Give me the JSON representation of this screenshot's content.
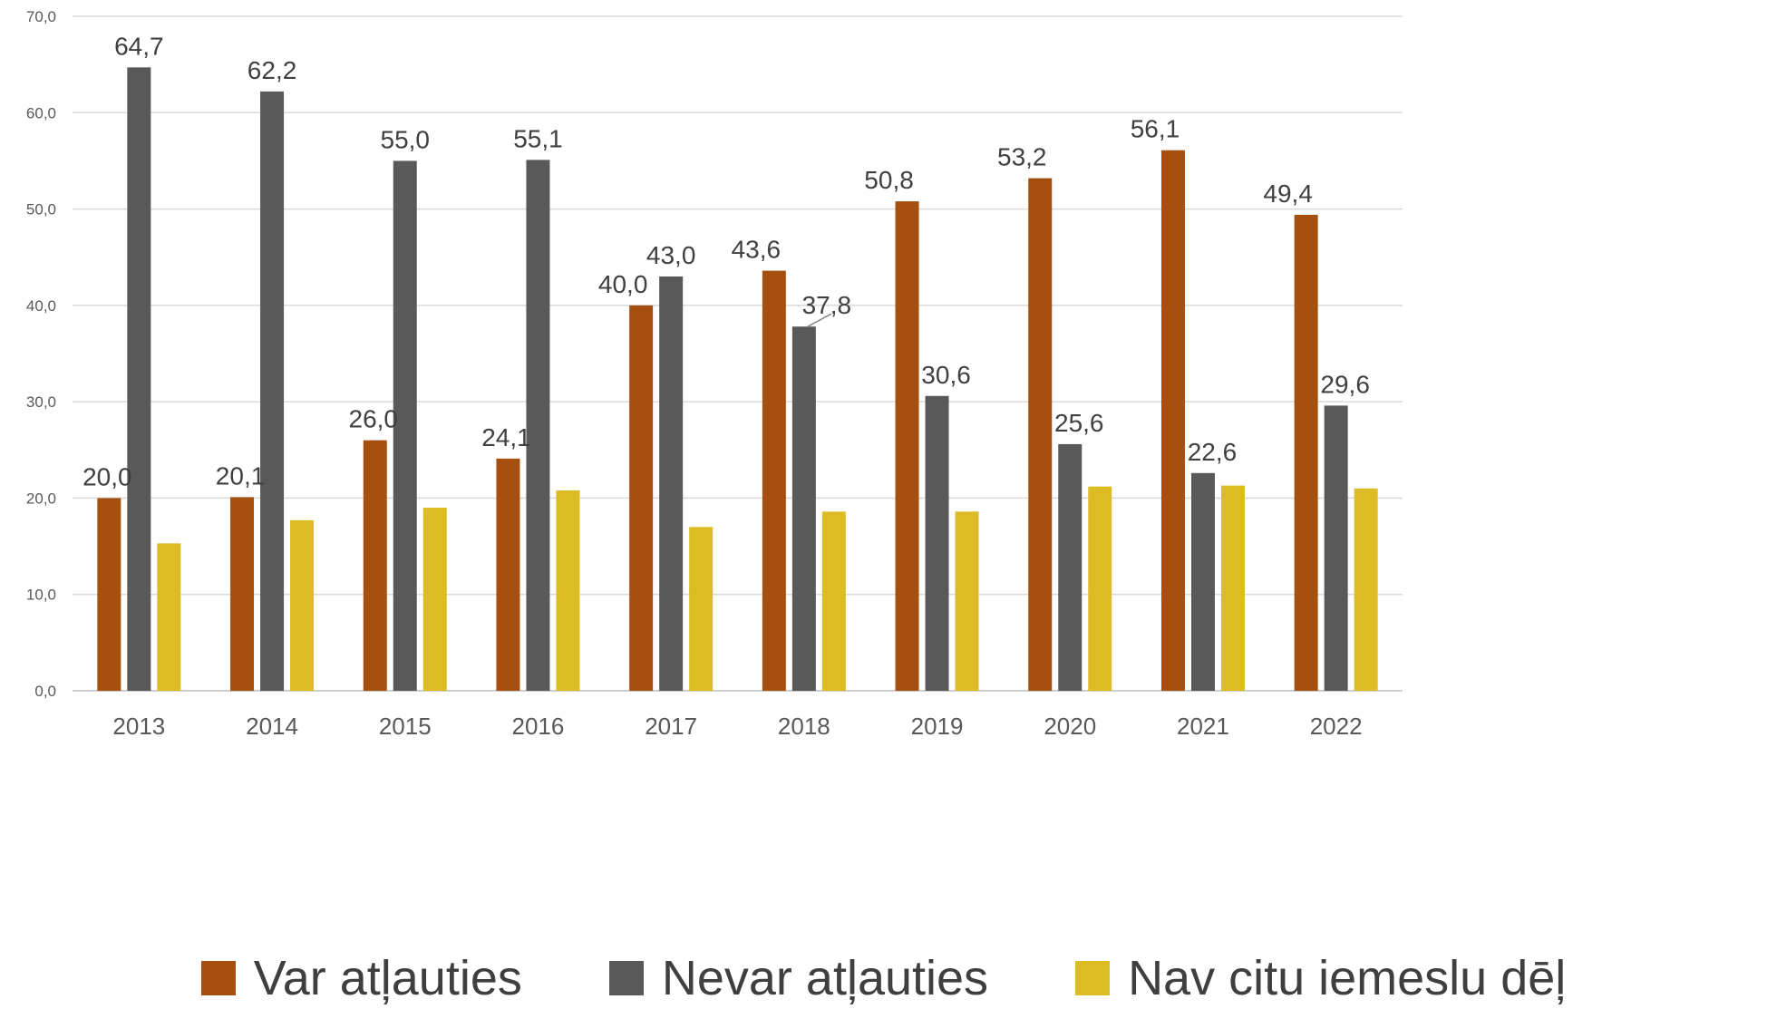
{
  "chart_data": {
    "type": "bar",
    "title": "",
    "xlabel": "",
    "ylabel": "",
    "ylim": [
      0,
      70
    ],
    "ytick_step": 10,
    "ytick_labels": [
      "0,0",
      "10,0",
      "20,0",
      "30,0",
      "40,0",
      "50,0",
      "60,0",
      "70,0"
    ],
    "grid": true,
    "legend_position": "bottom",
    "categories": [
      "2013",
      "2014",
      "2015",
      "2016",
      "2017",
      "2018",
      "2019",
      "2020",
      "2021",
      "2022"
    ],
    "series": [
      {
        "name": "Var atļauties",
        "color": "#A5500F",
        "values": [
          20.0,
          20.1,
          26.0,
          24.1,
          40.0,
          43.6,
          50.8,
          53.2,
          56.1,
          49.4
        ],
        "labels": [
          "20,0",
          "20,1",
          "26,0",
          "24,1",
          "40,0",
          "43,6",
          "50,8",
          "53,2",
          "56,1",
          "49,4"
        ]
      },
      {
        "name": "Nevar atļauties",
        "color": "#595959",
        "values": [
          64.7,
          62.2,
          55.0,
          55.1,
          43.0,
          37.8,
          30.6,
          25.6,
          22.6,
          29.6
        ],
        "labels": [
          "64,7",
          "62,2",
          "55,0",
          "55,1",
          "43,0",
          "37,8",
          "30,6",
          "25,6",
          "22,6",
          "29,6"
        ]
      },
      {
        "name": "Nav citu iemeslu dēļ",
        "color": "#DDBB22",
        "values": [
          15.3,
          17.7,
          19.0,
          20.8,
          17.0,
          18.6,
          18.6,
          21.2,
          21.3,
          21.0
        ],
        "labels": []
      }
    ]
  }
}
